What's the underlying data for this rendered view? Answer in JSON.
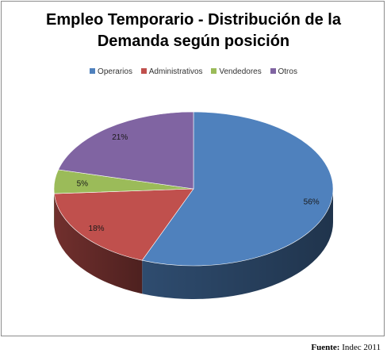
{
  "chart_data": {
    "type": "pie",
    "title_lines": [
      "Empleo Temporario - Distribución de la",
      "Demanda según posición"
    ],
    "legend_placement": "top",
    "series": [
      {
        "name": "Operarios",
        "value": 56,
        "label": "56%",
        "color": "#4f81bd"
      },
      {
        "name": "Administrativos",
        "value": 18,
        "label": "18%",
        "color": "#c0504d"
      },
      {
        "name": "Vendedores",
        "value": 5,
        "label": "5%",
        "color": "#9bbb59"
      },
      {
        "name": "Otros",
        "value": 21,
        "label": "21%",
        "color": "#8064a2"
      }
    ]
  },
  "source": {
    "label": "Fuente:",
    "text": "Indec 2011"
  }
}
